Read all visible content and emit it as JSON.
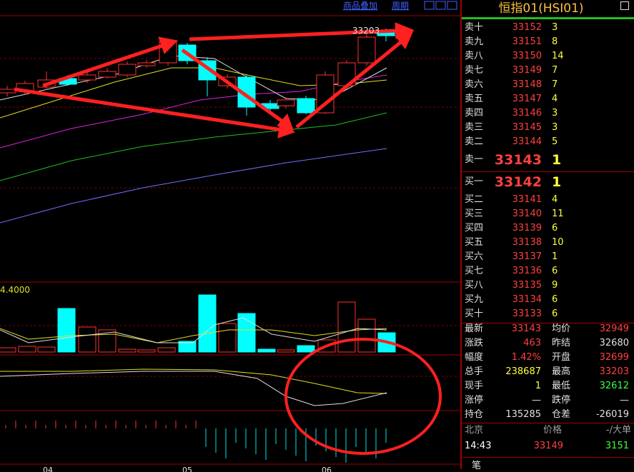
{
  "toolbar": {
    "overlay": "商品叠加",
    "period": "周期"
  },
  "chart": {
    "high_label": "33203",
    "indicator_label": "4.4000",
    "x_labels": [
      "04",
      "05",
      "06"
    ]
  },
  "quote": {
    "title": "恒指01(HSI01)",
    "asks": [
      {
        "label": "卖十",
        "price": 33152,
        "volume": 3
      },
      {
        "label": "卖九",
        "price": 33151,
        "volume": 8
      },
      {
        "label": "卖八",
        "price": 33150,
        "volume": 14
      },
      {
        "label": "卖七",
        "price": 33149,
        "volume": 7
      },
      {
        "label": "卖六",
        "price": 33148,
        "volume": 7
      },
      {
        "label": "卖五",
        "price": 33147,
        "volume": 4
      },
      {
        "label": "卖四",
        "price": 33146,
        "volume": 3
      },
      {
        "label": "卖三",
        "price": 33145,
        "volume": 3
      },
      {
        "label": "卖二",
        "price": 33144,
        "volume": 5
      },
      {
        "label": "卖一",
        "price": 33143,
        "volume": 1
      }
    ],
    "bids": [
      {
        "label": "买一",
        "price": 33142,
        "volume": 1
      },
      {
        "label": "买二",
        "price": 33141,
        "volume": 4
      },
      {
        "label": "买三",
        "price": 33140,
        "volume": 11
      },
      {
        "label": "买四",
        "price": 33139,
        "volume": 6
      },
      {
        "label": "买五",
        "price": 33138,
        "volume": 10
      },
      {
        "label": "买六",
        "price": 33137,
        "volume": 1
      },
      {
        "label": "买七",
        "price": 33136,
        "volume": 6
      },
      {
        "label": "买八",
        "price": 33135,
        "volume": 9
      },
      {
        "label": "买九",
        "price": 33134,
        "volume": 6
      },
      {
        "label": "买十",
        "price": 33133,
        "volume": 6
      }
    ],
    "stats": [
      [
        {
          "label": "最新",
          "value": 33143,
          "color": "#ff4040"
        },
        {
          "label": "均价",
          "value": 32949,
          "color": "#ff4040"
        }
      ],
      [
        {
          "label": "涨跌",
          "value": 463,
          "color": "#ff4040"
        },
        {
          "label": "昨结",
          "value": 32680,
          "color": "#e0e0e0"
        }
      ],
      [
        {
          "label": "幅度",
          "value": "1.42%",
          "color": "#ff4040"
        },
        {
          "label": "开盘",
          "value": 32699,
          "color": "#ff4040"
        }
      ],
      [
        {
          "label": "总手",
          "value": 238687,
          "color": "#ffff40"
        },
        {
          "label": "最高",
          "value": 33203,
          "color": "#ff4040"
        }
      ],
      [
        {
          "label": "现手",
          "value": 1,
          "color": "#ffff40"
        },
        {
          "label": "最低",
          "value": 32612,
          "color": "#40ff40"
        }
      ],
      [
        {
          "label": "涨停",
          "value": "—",
          "color": "#e0e0e0"
        },
        {
          "label": "跌停",
          "value": "—",
          "color": "#e0e0e0"
        }
      ],
      [
        {
          "label": "持仓",
          "value": 135285,
          "color": "#e0e0e0"
        },
        {
          "label": "仓差",
          "value": -26019,
          "color": "#e0e0e0"
        }
      ]
    ],
    "ticks": {
      "headers": [
        "北京",
        "价格",
        "-/大单"
      ],
      "rows": [
        [
          "14:43",
          33149,
          3151
        ]
      ]
    },
    "footer": "笔"
  }
}
